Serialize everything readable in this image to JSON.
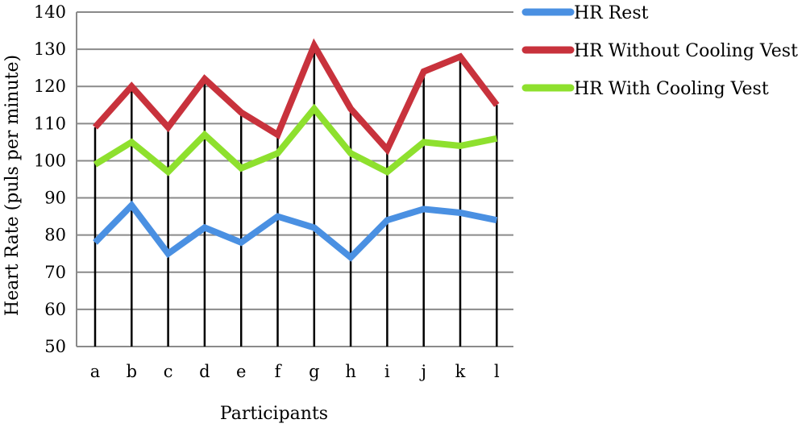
{
  "chart_data": {
    "type": "line",
    "title": "",
    "xlabel": "Participants",
    "ylabel": "Heart Rate (puls per minute)",
    "ylim": [
      50,
      140
    ],
    "yticks": [
      50,
      60,
      70,
      80,
      90,
      100,
      110,
      120,
      130,
      140
    ],
    "categories": [
      "a",
      "b",
      "c",
      "d",
      "e",
      "f",
      "g",
      "h",
      "i",
      "j",
      "k",
      "l"
    ],
    "grid": "horizontal",
    "legend_position": "top-right",
    "series": [
      {
        "name": "HR Rest",
        "color": "#4a90e2",
        "values": [
          78,
          88,
          75,
          82,
          78,
          85,
          82,
          74,
          84,
          87,
          86,
          84
        ]
      },
      {
        "name": "HR Without Cooling Vest",
        "color": "#c8323c",
        "values": [
          109,
          120,
          109,
          122,
          113,
          107,
          131,
          114,
          103,
          124,
          128,
          115
        ]
      },
      {
        "name": "HR With Cooling Vest",
        "color": "#8ee02e",
        "values": [
          99,
          105,
          97,
          107,
          98,
          102,
          114,
          102,
          97,
          105,
          104,
          106
        ]
      }
    ]
  }
}
